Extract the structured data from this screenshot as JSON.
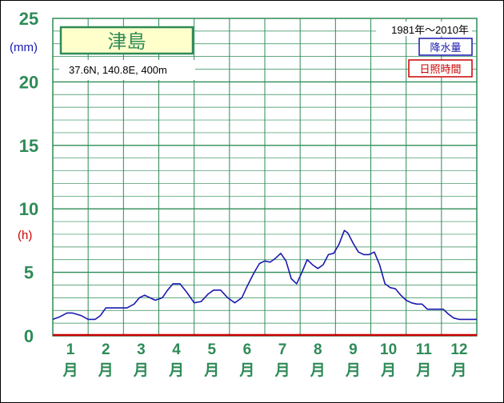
{
  "chart_data": {
    "type": "line",
    "station_name": "津島",
    "location": "37.6N,  140.8E,  400m",
    "period": "1981年〜2010年",
    "legend": [
      {
        "label": "降水量",
        "color": "#1a1ab0"
      },
      {
        "label": "日照時間",
        "color": "#cc0000"
      }
    ],
    "units": {
      "precip": "(mm)",
      "precip_color": "#1a1ab0",
      "sunshine": "(h)",
      "sunshine_color": "#cc0000"
    },
    "y_ticks": [
      "25",
      "20",
      "15",
      "10",
      "5",
      "0"
    ],
    "ylim": [
      0,
      25
    ],
    "grid": true,
    "months": [
      {
        "num": "1",
        "unit": "月"
      },
      {
        "num": "2",
        "unit": "月"
      },
      {
        "num": "3",
        "unit": "月"
      },
      {
        "num": "4",
        "unit": "月"
      },
      {
        "num": "5",
        "unit": "月"
      },
      {
        "num": "6",
        "unit": "月"
      },
      {
        "num": "7",
        "unit": "月"
      },
      {
        "num": "8",
        "unit": "月"
      },
      {
        "num": "9",
        "unit": "月"
      },
      {
        "num": "10",
        "unit": "月"
      },
      {
        "num": "11",
        "unit": "月"
      },
      {
        "num": "12",
        "unit": "月"
      }
    ],
    "series": [
      {
        "name": "降水量",
        "color": "#1a1ab0",
        "x": [
          0.5,
          0.7,
          0.9,
          1.05,
          1.3,
          1.5,
          1.7,
          1.85,
          2.0,
          2.2,
          2.4,
          2.6,
          2.8,
          2.95,
          3.1,
          3.25,
          3.4,
          3.6,
          3.75,
          3.9,
          4.1,
          4.3,
          4.5,
          4.7,
          4.9,
          5.05,
          5.25,
          5.45,
          5.65,
          5.85,
          6.0,
          6.2,
          6.35,
          6.5,
          6.65,
          6.8,
          6.95,
          7.1,
          7.25,
          7.4,
          7.55,
          7.7,
          7.85,
          8.0,
          8.15,
          8.3,
          8.45,
          8.6,
          8.75,
          8.85,
          9.0,
          9.15,
          9.3,
          9.45,
          9.6,
          9.75,
          9.9,
          10.05,
          10.2,
          10.35,
          10.5,
          10.65,
          10.8,
          10.95,
          11.1,
          11.25,
          11.4,
          11.55,
          11.7,
          11.85,
          12.0,
          12.2,
          12.5
        ],
        "values": [
          1.3,
          1.5,
          1.8,
          1.8,
          1.6,
          1.3,
          1.3,
          1.6,
          2.2,
          2.2,
          2.2,
          2.2,
          2.5,
          3.0,
          3.2,
          3.0,
          2.8,
          3.0,
          3.6,
          4.1,
          4.1,
          3.4,
          2.6,
          2.7,
          3.3,
          3.6,
          3.6,
          3.0,
          2.6,
          3.0,
          3.9,
          5.0,
          5.7,
          5.9,
          5.8,
          6.1,
          6.5,
          5.9,
          4.5,
          4.1,
          5.0,
          6.0,
          5.6,
          5.3,
          5.6,
          6.4,
          6.5,
          7.2,
          8.3,
          8.1,
          7.3,
          6.6,
          6.4,
          6.4,
          6.6,
          5.6,
          4.1,
          3.8,
          3.7,
          3.2,
          2.8,
          2.6,
          2.5,
          2.5,
          2.1,
          2.1,
          2.1,
          2.1,
          1.7,
          1.4,
          1.3,
          1.3,
          1.3
        ]
      }
    ]
  }
}
